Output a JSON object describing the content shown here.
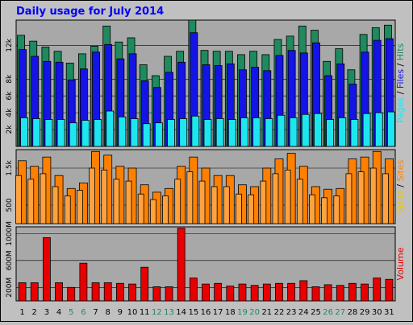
{
  "title": "Daily usage for July 2014",
  "colors": {
    "background": "#c0c0c0",
    "plot_bg": "#a8a8a8",
    "title": "#0000ff",
    "hits": "#1e8a5e",
    "files": "#1414e6",
    "pages": "#1ee6f0",
    "visits": "#ff8000",
    "sites": "#ffa23e",
    "volume": "#e80000",
    "weekend_label": "#1e8a5e",
    "weekday_label": "#000000"
  },
  "chart_data": [
    {
      "type": "bar",
      "panel": "hits",
      "categories": [
        "1",
        "2",
        "3",
        "4",
        "5",
        "6",
        "7",
        "8",
        "9",
        "10",
        "11",
        "12",
        "13",
        "14",
        "15",
        "16",
        "17",
        "18",
        "19",
        "20",
        "21",
        "22",
        "23",
        "24",
        "25",
        "26",
        "27",
        "28",
        "29",
        "30",
        "31"
      ],
      "weekend_days": [
        "5",
        "6",
        "12",
        "13",
        "19",
        "20",
        "26",
        "27"
      ],
      "ylim": [
        0,
        15000
      ],
      "y_ticks": [
        2000,
        4000,
        6000,
        8000,
        12000
      ],
      "y_tick_labels": [
        "2k",
        "4k",
        "6k",
        "8k",
        "12k"
      ],
      "axis_label_parts": [
        {
          "text": "Pages",
          "color": "#1ee6f0"
        },
        {
          "text": " / ",
          "color": "#000000"
        },
        {
          "text": "Files",
          "color": "#1414e6"
        },
        {
          "text": " / ",
          "color": "#000000"
        },
        {
          "text": "Hits",
          "color": "#1e8a5e"
        }
      ],
      "series": [
        {
          "name": "Hits",
          "values": [
            13200,
            12500,
            11800,
            11300,
            9900,
            11000,
            11900,
            14300,
            12400,
            12900,
            9700,
            8400,
            10700,
            11300,
            15000,
            11400,
            11300,
            11300,
            10900,
            11300,
            10900,
            12700,
            13100,
            14300,
            13800,
            10100,
            11600,
            9100,
            13300,
            14100,
            14400
          ]
        },
        {
          "name": "Files",
          "values": [
            11500,
            10700,
            10100,
            10000,
            7900,
            9200,
            11200,
            12100,
            10400,
            11000,
            7800,
            7000,
            8800,
            10000,
            13500,
            9700,
            9600,
            9800,
            9100,
            9400,
            9000,
            10800,
            11400,
            11100,
            12300,
            8400,
            9800,
            7400,
            11200,
            12600,
            12800
          ]
        },
        {
          "name": "Pages",
          "values": [
            3400,
            3300,
            3200,
            3200,
            2800,
            3100,
            3200,
            4200,
            3500,
            3300,
            2700,
            2800,
            3200,
            3300,
            3600,
            3200,
            3300,
            3200,
            3400,
            3400,
            3300,
            3700,
            3400,
            3800,
            3900,
            3200,
            3400,
            3200,
            3900,
            4000,
            4100
          ]
        }
      ]
    },
    {
      "type": "bar",
      "panel": "visits",
      "categories": [
        "1",
        "2",
        "3",
        "4",
        "5",
        "6",
        "7",
        "8",
        "9",
        "10",
        "11",
        "12",
        "13",
        "14",
        "15",
        "16",
        "17",
        "18",
        "19",
        "20",
        "21",
        "22",
        "23",
        "24",
        "25",
        "26",
        "27",
        "28",
        "29",
        "30",
        "31"
      ],
      "ylim": [
        0,
        2000
      ],
      "y_ticks": [
        500,
        1500
      ],
      "y_tick_labels": [
        "500",
        "1.5k"
      ],
      "axis_label_parts": [
        {
          "text": "Visits",
          "color": "#e6c800"
        },
        {
          "text": " / ",
          "color": "#000000"
        },
        {
          "text": "Sites",
          "color": "#ff8000"
        }
      ],
      "series": [
        {
          "name": "Visits",
          "values": [
            1700,
            1550,
            1800,
            1300,
            950,
            1100,
            1950,
            1850,
            1550,
            1500,
            1050,
            850,
            950,
            1550,
            1800,
            1500,
            1300,
            1300,
            1050,
            1000,
            1500,
            1750,
            1900,
            1550,
            1000,
            930,
            950,
            1750,
            1800,
            1950,
            1750
          ]
        },
        {
          "name": "Sites",
          "values": [
            1300,
            1200,
            1350,
            1000,
            750,
            900,
            1500,
            1450,
            1200,
            1150,
            800,
            650,
            750,
            1200,
            1400,
            1150,
            1000,
            1000,
            800,
            780,
            1150,
            1350,
            1450,
            1200,
            780,
            700,
            750,
            1350,
            1400,
            1500,
            1350
          ]
        }
      ]
    },
    {
      "type": "bar",
      "panel": "volume",
      "categories": [
        "1",
        "2",
        "3",
        "4",
        "5",
        "6",
        "7",
        "8",
        "9",
        "10",
        "11",
        "12",
        "13",
        "14",
        "15",
        "16",
        "17",
        "18",
        "19",
        "20",
        "21",
        "22",
        "23",
        "24",
        "25",
        "26",
        "27",
        "28",
        "29",
        "30",
        "31"
      ],
      "ylim": [
        0,
        1100
      ],
      "y_ticks": [
        200,
        600,
        1000
      ],
      "y_tick_labels": [
        "200M",
        "600M",
        "1000M"
      ],
      "axis_label_parts": [
        {
          "text": "Volume",
          "color": "#e80000"
        }
      ],
      "series": [
        {
          "name": "Volume",
          "values": [
            270,
            270,
            940,
            270,
            200,
            560,
            270,
            270,
            260,
            250,
            500,
            210,
            210,
            1080,
            340,
            250,
            260,
            220,
            250,
            230,
            250,
            260,
            260,
            300,
            210,
            240,
            230,
            260,
            250,
            340,
            320
          ]
        }
      ]
    }
  ]
}
